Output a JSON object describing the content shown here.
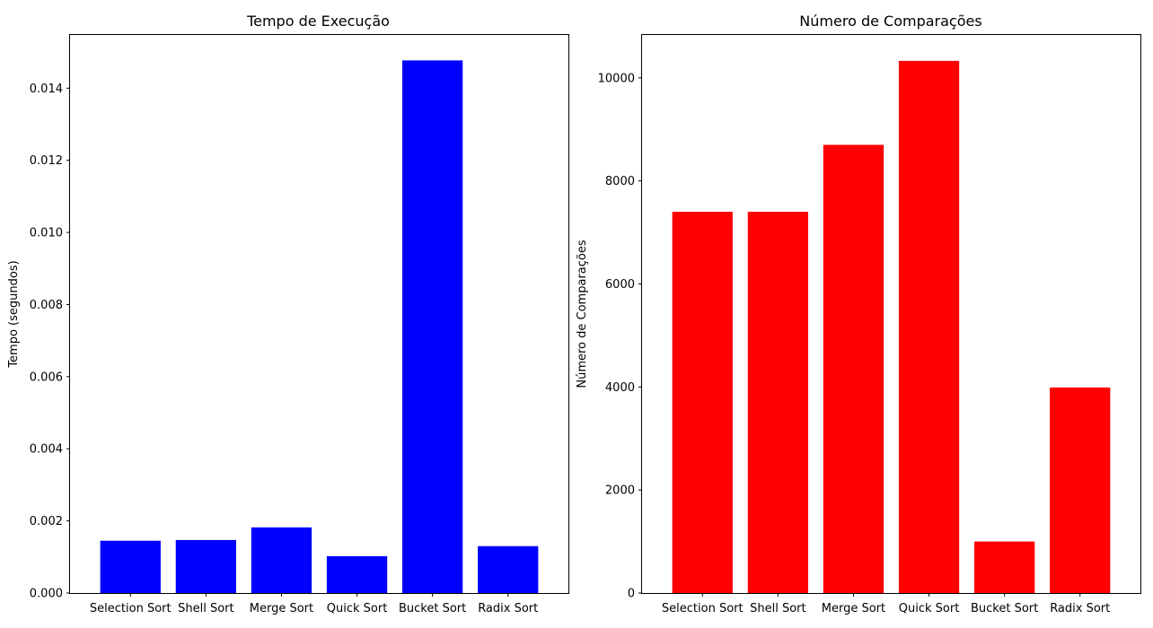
{
  "chart_data": [
    {
      "type": "bar",
      "title": "Tempo de Execução",
      "xlabel": "",
      "ylabel": "Tempo (segundos)",
      "categories": [
        "Selection Sort",
        "Shell Sort",
        "Merge Sort",
        "Quick Sort",
        "Bucket Sort",
        "Radix Sort"
      ],
      "values": [
        0.00145,
        0.00147,
        0.00182,
        0.00102,
        0.01477,
        0.0013
      ],
      "color": "#0000ff",
      "ylim": [
        0,
        0.0155
      ],
      "yticks": [
        0,
        0.002,
        0.004,
        0.006,
        0.008,
        0.01,
        0.012,
        0.014
      ],
      "ytick_labels": [
        "0.000",
        "0.002",
        "0.004",
        "0.006",
        "0.008",
        "0.010",
        "0.012",
        "0.014"
      ],
      "grid": false
    },
    {
      "type": "bar",
      "title": "Número de Comparações",
      "xlabel": "",
      "ylabel": "Número de Comparações",
      "categories": [
        "Selection Sort",
        "Shell Sort",
        "Merge Sort",
        "Quick Sort",
        "Bucket Sort",
        "Radix Sort"
      ],
      "values": [
        7400,
        7400,
        8700,
        10330,
        1000,
        3990
      ],
      "color": "#ff0000",
      "ylim": [
        0,
        10850
      ],
      "yticks": [
        0,
        2000,
        4000,
        6000,
        8000,
        10000
      ],
      "ytick_labels": [
        "0",
        "2000",
        "4000",
        "6000",
        "8000",
        "10000"
      ],
      "grid": false
    }
  ]
}
